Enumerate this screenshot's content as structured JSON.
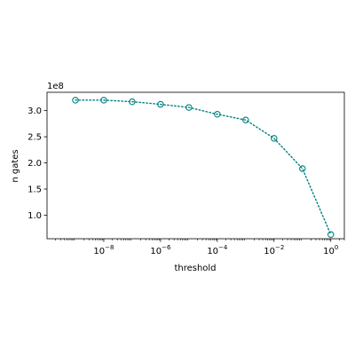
{
  "chart_data": {
    "type": "line",
    "title": "",
    "xlabel": "threshold",
    "ylabel": "n gates",
    "x_scale": "log",
    "xlim": [
      1e-10,
      3
    ],
    "ylim": [
      55000000,
      335000000
    ],
    "y_offset_label": "1e8",
    "x_ticks": [
      {
        "value": 1e-08,
        "label": "10",
        "exp": "−8"
      },
      {
        "value": 1e-06,
        "label": "10",
        "exp": "−6"
      },
      {
        "value": 0.0001,
        "label": "10",
        "exp": "−4"
      },
      {
        "value": 0.01,
        "label": "10",
        "exp": "−2"
      },
      {
        "value": 1,
        "label": "10",
        "exp": "0"
      }
    ],
    "y_ticks": [
      {
        "value": 100000000,
        "label": "1.0"
      },
      {
        "value": 150000000,
        "label": "1.5"
      },
      {
        "value": 200000000,
        "label": "2.0"
      },
      {
        "value": 250000000,
        "label": "2.5"
      },
      {
        "value": 300000000,
        "label": "3.0"
      }
    ],
    "grid": false,
    "series": [
      {
        "color": "#008080",
        "line_style": "dotted",
        "marker": "open-circle",
        "x": [
          1e-09,
          1e-08,
          1e-07,
          1e-06,
          1e-05,
          0.0001,
          0.001,
          0.01,
          0.1,
          1
        ],
        "y": [
          320000000,
          320000000,
          317000000,
          312000000,
          306000000,
          293000000,
          282000000,
          247000000,
          189000000,
          63000000
        ]
      }
    ]
  }
}
